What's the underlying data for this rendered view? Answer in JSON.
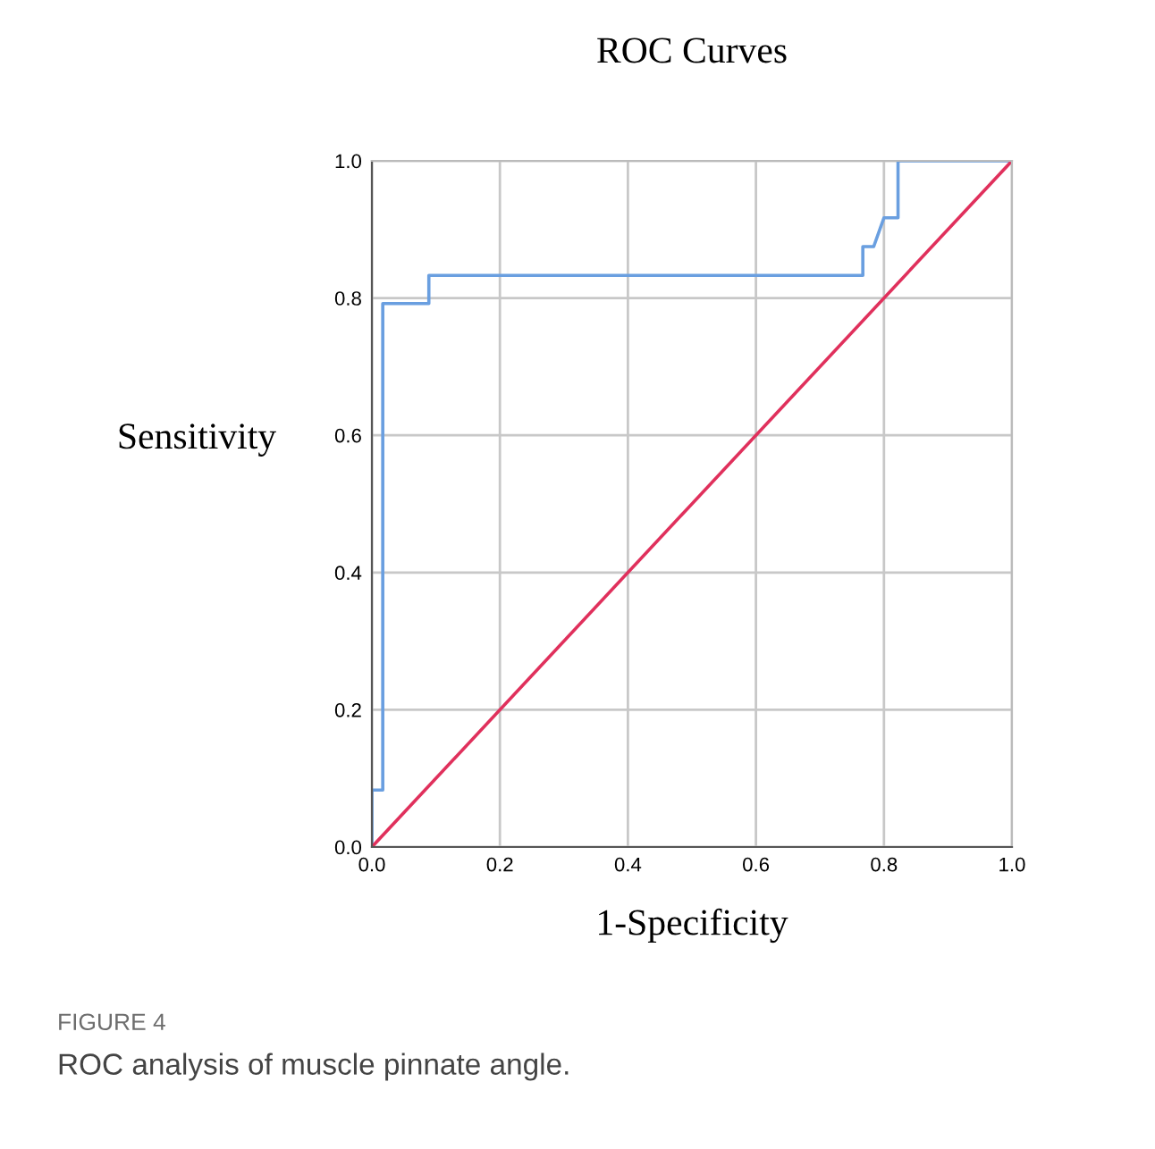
{
  "chart_data": {
    "type": "step",
    "title": "ROC Curves",
    "xlabel": "1-Specificity",
    "ylabel": "Sensitivity",
    "series": [
      {
        "color": "#6a9fe0",
        "x": [
          0,
          0,
          0.017,
          0.017,
          0.089,
          0.089,
          0.767,
          0.767,
          0.784,
          0.8,
          0.822,
          0.822,
          1.0
        ],
        "values": [
          0,
          0.083,
          0.083,
          0.792,
          0.792,
          0.833,
          0.833,
          0.875,
          0.875,
          0.917,
          0.917,
          1.0,
          1.0
        ]
      },
      {
        "type": "line",
        "color": "#e0305c",
        "x": [
          0,
          1
        ],
        "values": [
          0,
          1
        ]
      }
    ],
    "xlim": [
      0,
      1
    ],
    "ylim": [
      0,
      1
    ],
    "xticks": [
      {
        "value": 0,
        "label": "0.0"
      },
      0.2,
      0.4,
      0.6,
      0.8,
      {
        "value": 1,
        "label": "1.0"
      }
    ],
    "yticks": [
      {
        "value": 0,
        "label": "0.0"
      },
      0.2,
      0.4,
      0.6,
      0.8,
      {
        "value": 1,
        "label": "1.0"
      }
    ],
    "grid": true,
    "marker": "none",
    "legend": false,
    "annotations": [
      "FIGURE 4",
      "ROC analysis of muscle pinnate angle."
    ]
  }
}
